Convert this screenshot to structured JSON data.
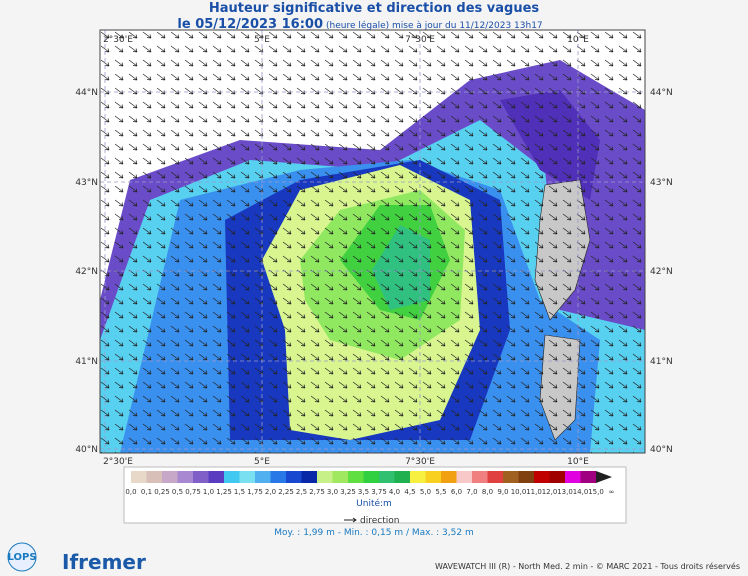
{
  "header": {
    "title": "Hauteur significative et direction des vagues",
    "date": "le 05/12/2023 16:00",
    "update": "(heure légale) mise à jour du 11/12/2023 13h17"
  },
  "map": {
    "lon_labels": [
      "2°30'E",
      "5°E",
      "7°30'E",
      "10°E"
    ],
    "lat_labels": [
      "44°N",
      "43°N",
      "42°N",
      "41°N",
      "40°N"
    ]
  },
  "colorbar": {
    "labels": [
      "0,0",
      "0,1",
      "0,25",
      "0,5",
      "0,75",
      "1,0",
      "1,25",
      "1,5",
      "1,75",
      "2,0",
      "2,25",
      "2,5",
      "2,75",
      "3,0",
      "3,25",
      "3,5",
      "3,75",
      "4,0",
      "4,5",
      "5,0",
      "5,5",
      "6,0",
      "7,0",
      "8,0",
      "9,0",
      "10,0",
      "11,0",
      "12,0",
      "13,0",
      "14,0",
      "15,0",
      "∞"
    ],
    "colors": [
      "#e8d8c8",
      "#d8c0b8",
      "#c8a8c8",
      "#a888d0",
      "#8060c8",
      "#5a3cc0",
      "#40c8f0",
      "#78e0f0",
      "#50b0f0",
      "#2878e8",
      "#1848d0",
      "#0828a8",
      "#c8f088",
      "#a0e860",
      "#60e040",
      "#30d040",
      "#30c070",
      "#20b050",
      "#f8f040",
      "#f8d020",
      "#f0a010",
      "#f8c8c8",
      "#f08080",
      "#e04040",
      "#a06020",
      "#804010",
      "#c00000",
      "#a00000",
      "#e000e0",
      "#a00080",
      "#202020"
    ],
    "unit": "Unité:m",
    "direction": "direction"
  },
  "stats": "Moy. : 1,99 m   -   Min. : 0,15 m / Max. : 3,52 m",
  "footer": {
    "credits": "WAVEWATCH III (R) - North Med. 2 min - © MARC 2021 - Tous droits réservés",
    "logo1": "LOPS",
    "logo2": "Ifremer"
  }
}
